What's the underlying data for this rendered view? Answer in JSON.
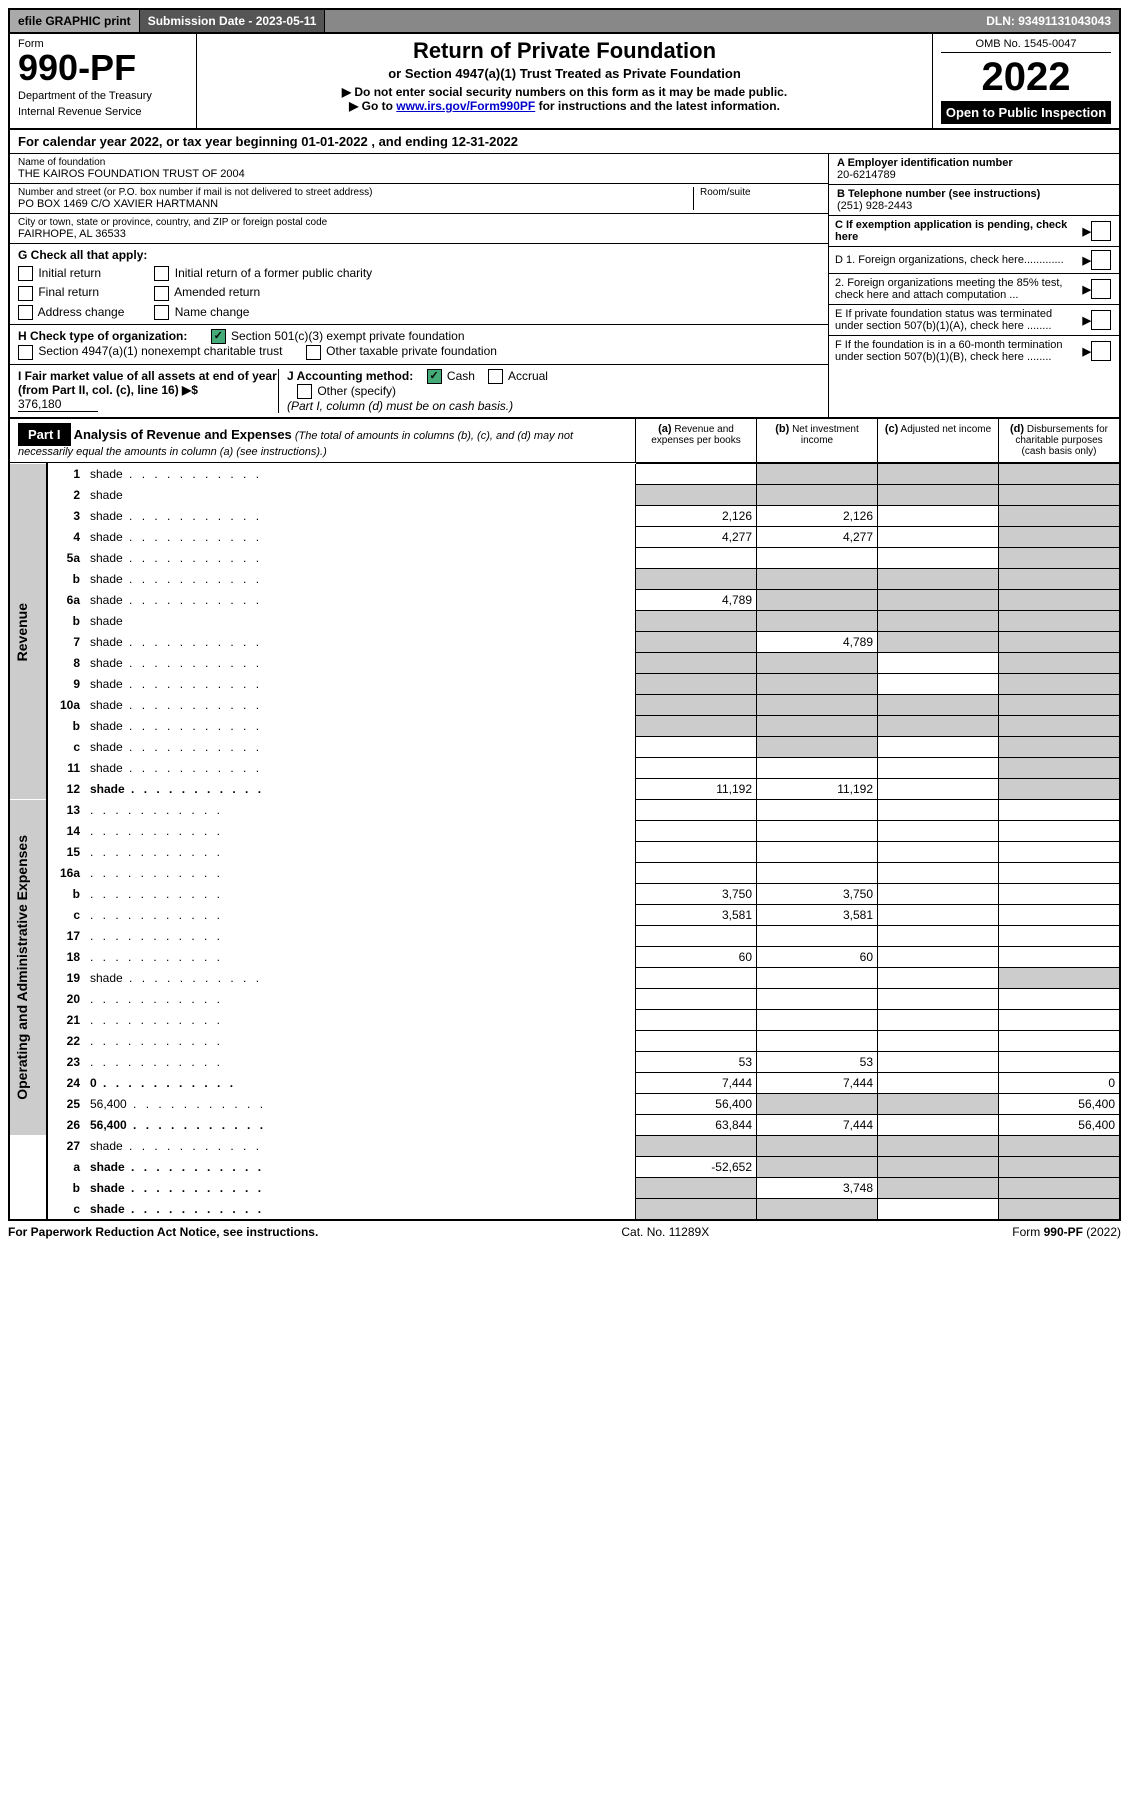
{
  "topbar": {
    "efile": "efile GRAPHIC print",
    "submission": "Submission Date - 2023-05-11",
    "dln": "DLN: 93491131043043"
  },
  "header": {
    "form_label": "Form",
    "form_num": "990-PF",
    "dept1": "Department of the Treasury",
    "dept2": "Internal Revenue Service",
    "title": "Return of Private Foundation",
    "subtitle": "or Section 4947(a)(1) Trust Treated as Private Foundation",
    "instr1": "▶ Do not enter social security numbers on this form as it may be made public.",
    "instr2_pre": "▶ Go to ",
    "instr2_link": "www.irs.gov/Form990PF",
    "instr2_post": " for instructions and the latest information.",
    "omb": "OMB No. 1545-0047",
    "year": "2022",
    "open": "Open to Public Inspection"
  },
  "cal_year": {
    "text_pre": "For calendar year 2022, or tax year beginning ",
    "begin": "01-01-2022",
    "text_mid": " , and ending ",
    "end": "12-31-2022"
  },
  "info": {
    "name_label": "Name of foundation",
    "name": "THE KAIROS FOUNDATION TRUST OF 2004",
    "addr_label": "Number and street (or P.O. box number if mail is not delivered to street address)",
    "addr": "PO BOX 1469 C/O XAVIER HARTMANN",
    "room_label": "Room/suite",
    "city_label": "City or town, state or province, country, and ZIP or foreign postal code",
    "city": "FAIRHOPE, AL  36533",
    "a_label": "A Employer identification number",
    "a_val": "20-6214789",
    "b_label": "B Telephone number (see instructions)",
    "b_val": "(251) 928-2443",
    "c_label": "C If exemption application is pending, check here",
    "d1": "D 1. Foreign organizations, check here.............",
    "d2": "2. Foreign organizations meeting the 85% test, check here and attach computation ...",
    "e": "E  If private foundation status was terminated under section 507(b)(1)(A), check here ........",
    "f": "F  If the foundation is in a 60-month termination under section 507(b)(1)(B), check here ........"
  },
  "g": {
    "label": "G Check all that apply:",
    "opts": [
      "Initial return",
      "Final return",
      "Address change",
      "Initial return of a former public charity",
      "Amended return",
      "Name change"
    ]
  },
  "h": {
    "label": "H Check type of organization:",
    "opt1": "Section 501(c)(3) exempt private foundation",
    "opt2": "Section 4947(a)(1) nonexempt charitable trust",
    "opt3": "Other taxable private foundation"
  },
  "i": {
    "label": "I Fair market value of all assets at end of year (from Part II, col. (c), line 16)",
    "val": "376,180"
  },
  "j": {
    "label": "J Accounting method:",
    "cash": "Cash",
    "accrual": "Accrual",
    "other": "Other (specify)",
    "note": "(Part I, column (d) must be on cash basis.)"
  },
  "part1": {
    "title": "Part I",
    "heading": "Analysis of Revenue and Expenses",
    "sub": "(The total of amounts in columns (b), (c), and (d) may not necessarily equal the amounts in column (a) (see instructions).)",
    "col_a": "Revenue and expenses per books",
    "col_b": "Net investment income",
    "col_c": "Adjusted net income",
    "col_d": "Disbursements for charitable purposes (cash basis only)"
  },
  "sections": {
    "revenue": "Revenue",
    "expenses": "Operating and Administrative Expenses"
  },
  "rows": [
    {
      "n": "1",
      "d": "shade",
      "a": "",
      "b": "shade",
      "c": "shade"
    },
    {
      "n": "2",
      "d": "shade",
      "a": "shade",
      "b": "shade",
      "c": "shade",
      "dotsOff": true
    },
    {
      "n": "3",
      "d": "shade",
      "a": "2,126",
      "b": "2,126",
      "c": ""
    },
    {
      "n": "4",
      "d": "shade",
      "a": "4,277",
      "b": "4,277",
      "c": ""
    },
    {
      "n": "5a",
      "d": "shade",
      "a": "",
      "b": "",
      "c": ""
    },
    {
      "n": "b",
      "d": "shade",
      "a": "shade",
      "b": "shade",
      "c": "shade"
    },
    {
      "n": "6a",
      "d": "shade",
      "a": "4,789",
      "b": "shade",
      "c": "shade"
    },
    {
      "n": "b",
      "d": "shade",
      "a": "shade",
      "b": "shade",
      "c": "shade",
      "dotsOff": true
    },
    {
      "n": "7",
      "d": "shade",
      "a": "shade",
      "b": "4,789",
      "c": "shade"
    },
    {
      "n": "8",
      "d": "shade",
      "a": "shade",
      "b": "shade",
      "c": ""
    },
    {
      "n": "9",
      "d": "shade",
      "a": "shade",
      "b": "shade",
      "c": ""
    },
    {
      "n": "10a",
      "d": "shade",
      "a": "shade",
      "b": "shade",
      "c": "shade"
    },
    {
      "n": "b",
      "d": "shade",
      "a": "shade",
      "b": "shade",
      "c": "shade"
    },
    {
      "n": "c",
      "d": "shade",
      "a": "",
      "b": "shade",
      "c": ""
    },
    {
      "n": "11",
      "d": "shade",
      "a": "",
      "b": "",
      "c": ""
    },
    {
      "n": "12",
      "d": "shade",
      "a": "11,192",
      "b": "11,192",
      "c": "",
      "bold": true
    }
  ],
  "exp_rows": [
    {
      "n": "13",
      "d": "",
      "a": "",
      "b": "",
      "c": ""
    },
    {
      "n": "14",
      "d": "",
      "a": "",
      "b": "",
      "c": ""
    },
    {
      "n": "15",
      "d": "",
      "a": "",
      "b": "",
      "c": ""
    },
    {
      "n": "16a",
      "d": "",
      "a": "",
      "b": "",
      "c": ""
    },
    {
      "n": "b",
      "d": "",
      "a": "3,750",
      "b": "3,750",
      "c": ""
    },
    {
      "n": "c",
      "d": "",
      "a": "3,581",
      "b": "3,581",
      "c": ""
    },
    {
      "n": "17",
      "d": "",
      "a": "",
      "b": "",
      "c": ""
    },
    {
      "n": "18",
      "d": "",
      "a": "60",
      "b": "60",
      "c": ""
    },
    {
      "n": "19",
      "d": "shade",
      "a": "",
      "b": "",
      "c": ""
    },
    {
      "n": "20",
      "d": "",
      "a": "",
      "b": "",
      "c": ""
    },
    {
      "n": "21",
      "d": "",
      "a": "",
      "b": "",
      "c": ""
    },
    {
      "n": "22",
      "d": "",
      "a": "",
      "b": "",
      "c": ""
    },
    {
      "n": "23",
      "d": "",
      "a": "53",
      "b": "53",
      "c": ""
    },
    {
      "n": "24",
      "d": "0",
      "a": "7,444",
      "b": "7,444",
      "c": "",
      "bold": true
    },
    {
      "n": "25",
      "d": "56,400",
      "a": "56,400",
      "b": "shade",
      "c": "shade"
    },
    {
      "n": "26",
      "d": "56,400",
      "a": "63,844",
      "b": "7,444",
      "c": "",
      "bold": true
    }
  ],
  "final_rows": [
    {
      "n": "27",
      "d": "shade",
      "a": "shade",
      "b": "shade",
      "c": "shade"
    },
    {
      "n": "a",
      "d": "shade",
      "a": "-52,652",
      "b": "shade",
      "c": "shade",
      "bold": true
    },
    {
      "n": "b",
      "d": "shade",
      "a": "shade",
      "b": "3,748",
      "c": "shade",
      "bold": true
    },
    {
      "n": "c",
      "d": "shade",
      "a": "shade",
      "b": "shade",
      "c": "",
      "bold": true
    }
  ],
  "footer": {
    "left": "For Paperwork Reduction Act Notice, see instructions.",
    "mid": "Cat. No. 11289X",
    "right": "Form 990-PF (2022)"
  }
}
